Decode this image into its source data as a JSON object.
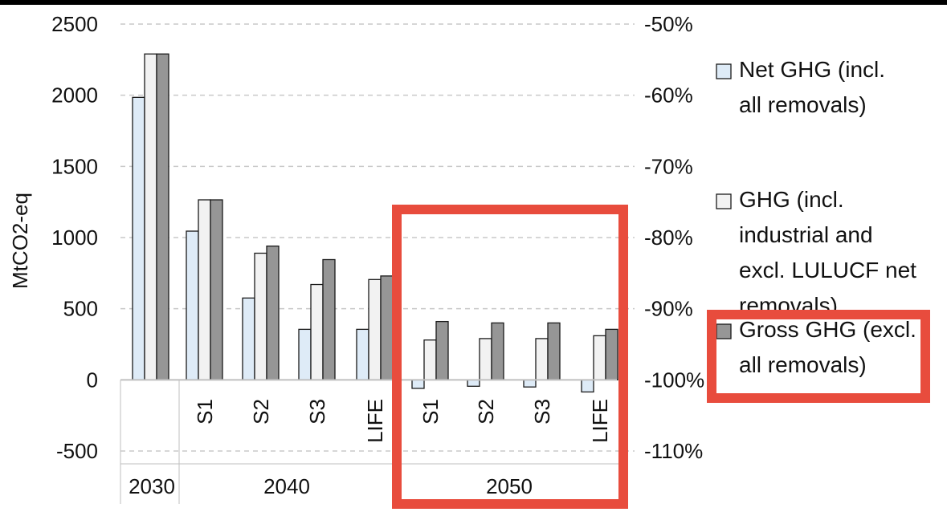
{
  "chart_data": {
    "type": "bar",
    "ylabel": "MtCO2-eq",
    "ylim": [
      -500,
      2500
    ],
    "y_ticks": [
      "2500",
      "2000",
      "1500",
      "1000",
      "500",
      "0",
      "-500"
    ],
    "y2_ticks": [
      "-50%",
      "-60%",
      "-70%",
      "-80%",
      "-90%",
      "-100%",
      "-110%"
    ],
    "groups": [
      {
        "label": "2030",
        "categories": [
          ""
        ]
      },
      {
        "label": "2040",
        "categories": [
          "S1",
          "S2",
          "S3",
          "LIFE"
        ]
      },
      {
        "label": "2050",
        "categories": [
          "S1",
          "S2",
          "S3",
          "LIFE"
        ]
      }
    ],
    "categories": [
      "2030",
      "2040 S1",
      "2040 S2",
      "2040 S3",
      "2040 LIFE",
      "2050 S1",
      "2050 S2",
      "2050 S3",
      "2050 LIFE"
    ],
    "series": [
      {
        "name": "Net GHG (incl. all removals)",
        "legend_lines": [
          "Net GHG (incl.",
          "all removals)"
        ],
        "color": "#DEEBF7",
        "values": [
          1985,
          1045,
          575,
          355,
          355,
          -60,
          -45,
          -50,
          -85
        ]
      },
      {
        "name": "GHG (incl. industrial and excl. LULUCF net removals)",
        "legend_lines": [
          "GHG (incl.",
          "industrial and",
          "excl. LULUCF net",
          "removals)"
        ],
        "color": "#F2F2F2",
        "values": [
          2290,
          1265,
          890,
          670,
          705,
          280,
          290,
          290,
          310
        ]
      },
      {
        "name": "Gross GHG (excl. all removals)",
        "legend_lines": [
          "Gross GHG (excl.",
          "all removals)"
        ],
        "color": "#969696",
        "values": [
          2290,
          1265,
          940,
          845,
          730,
          410,
          400,
          400,
          355
        ]
      }
    ],
    "grid": true,
    "legend_position": "right",
    "highlight_color": "#E84C3D"
  }
}
